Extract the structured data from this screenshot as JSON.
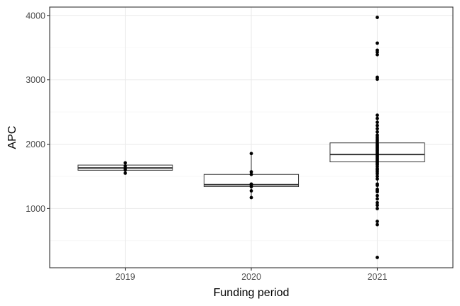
{
  "chart_data": {
    "type": "boxplot",
    "xlabel": "Funding period",
    "ylabel": "APC",
    "categories": [
      "2019",
      "2020",
      "2021"
    ],
    "ylim": [
      80,
      4130
    ],
    "yticks": [
      1000,
      2000,
      3000,
      4000
    ],
    "grid": true,
    "boxes": [
      {
        "category": "2019",
        "q1": 1595,
        "median": 1630,
        "q3": 1675,
        "whisker_low": 1550,
        "whisker_high": 1710
      },
      {
        "category": "2020",
        "q1": 1340,
        "median": 1370,
        "q3": 1530,
        "whisker_low": 1170,
        "whisker_high": 1855
      },
      {
        "category": "2021",
        "q1": 1725,
        "median": 1840,
        "q3": 2020,
        "whisker_low": 1300,
        "whisker_high": 2450
      }
    ],
    "points": [
      {
        "category": "2019",
        "values": [
          1710,
          1660,
          1625,
          1600,
          1550
        ]
      },
      {
        "category": "2020",
        "values": [
          1855,
          1570,
          1530,
          1380,
          1365,
          1340,
          1275,
          1170
        ]
      },
      {
        "category": "2021",
        "values": [
          3970,
          3570,
          3460,
          3430,
          3390,
          3040,
          3010,
          2450,
          2400,
          2340,
          2290,
          2240,
          2190,
          2140,
          2110,
          2080,
          2050,
          2020,
          2000,
          1980,
          1960,
          1940,
          1920,
          1900,
          1880,
          1860,
          1840,
          1820,
          1800,
          1780,
          1760,
          1740,
          1720,
          1700,
          1680,
          1650,
          1620,
          1600,
          1570,
          1540,
          1500,
          1460,
          1380,
          1360,
          1300,
          1280,
          1260,
          1200,
          1150,
          1090,
          1050,
          1000,
          800,
          750,
          240
        ]
      }
    ]
  }
}
